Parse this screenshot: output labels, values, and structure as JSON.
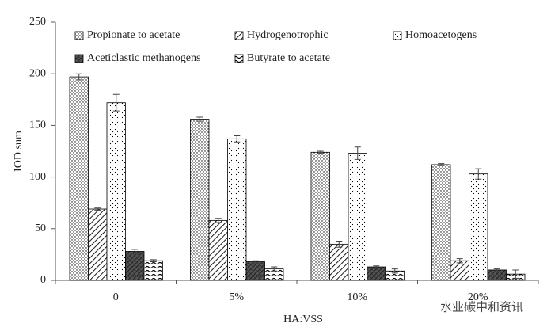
{
  "chart_data": {
    "type": "bar",
    "x_label": "HA:VSS",
    "y_label": "IOD sum",
    "categories": [
      "0",
      "5%",
      "10%",
      "20%"
    ],
    "series": [
      {
        "name": "Propionate to acetate",
        "color": "#000000",
        "pattern": "dots",
        "values": [
          197,
          156,
          124,
          112
        ],
        "errors": [
          3,
          2,
          1,
          1
        ]
      },
      {
        "name": "Hydrogenotrophic",
        "color": "#000000",
        "pattern": "hatch",
        "values": [
          69,
          58,
          35,
          19
        ],
        "errors": [
          1,
          2,
          3,
          2
        ]
      },
      {
        "name": "Homoacetogens",
        "color": "#000000",
        "pattern": "sparse-dots",
        "values": [
          172,
          137,
          123,
          103
        ],
        "errors": [
          8,
          3,
          6,
          5
        ]
      },
      {
        "name": "Aceticlastic methanogens",
        "color": "#000000",
        "pattern": "crosshatch",
        "values": [
          28,
          18,
          13,
          10
        ],
        "errors": [
          2,
          1,
          1,
          1
        ]
      },
      {
        "name": "Butyrate to acetate",
        "color": "#000000",
        "pattern": "wave",
        "values": [
          19,
          11,
          9,
          6
        ],
        "errors": [
          1,
          2,
          2,
          4
        ]
      }
    ],
    "ylim": [
      0,
      250
    ],
    "yticks": [
      0,
      50,
      100,
      150,
      200,
      250
    ],
    "grid": false,
    "legend": "top-left",
    "watermark": "水业碳中和资讯"
  }
}
